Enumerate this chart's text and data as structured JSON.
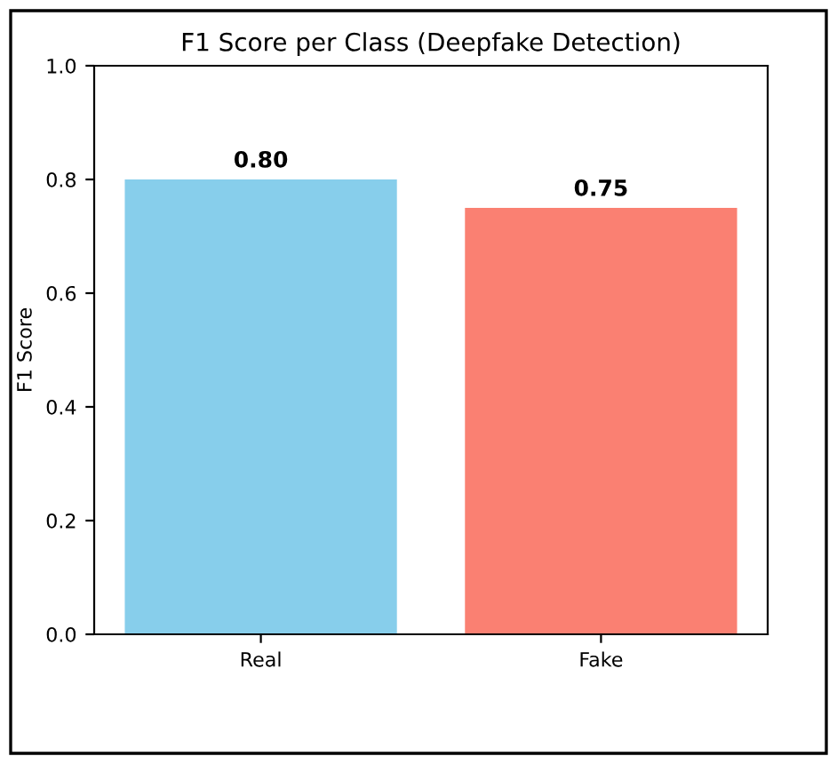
{
  "chart_data": {
    "type": "bar",
    "title": "F1 Score per Class (Deepfake Detection)",
    "ylabel": "F1 Score",
    "categories": [
      "Real",
      "Fake"
    ],
    "values": [
      0.8,
      0.75
    ],
    "colors": [
      "#87ceeb",
      "#fa8072"
    ],
    "value_labels": [
      "0.80",
      "0.75"
    ],
    "ylim": [
      0,
      1
    ],
    "yticks": [
      {
        "value": 0,
        "label": "0.0"
      },
      {
        "value": 0.2,
        "label": "0.2"
      },
      {
        "value": 0.4,
        "label": "0.4"
      },
      {
        "value": 0.6,
        "label": "0.6"
      },
      {
        "value": 0.8,
        "label": "0.8"
      },
      {
        "value": 1,
        "label": "1.0"
      }
    ]
  }
}
